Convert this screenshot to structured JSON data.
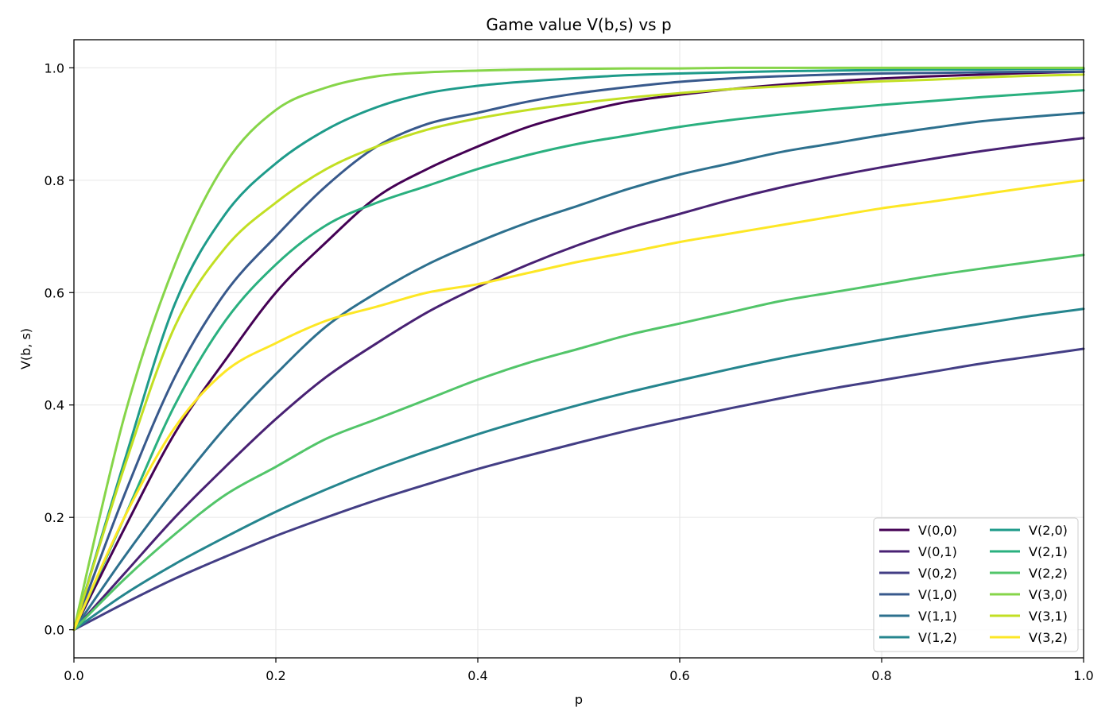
{
  "chart_data": {
    "type": "line",
    "title": "Game value V(b,s) vs p",
    "xlabel": "p",
    "ylabel": "V(b, s)",
    "xlim": [
      0.0,
      1.0
    ],
    "ylim": [
      -0.05,
      1.05
    ],
    "xticks": [
      "0.0",
      "0.2",
      "0.4",
      "0.6",
      "0.8",
      "1.0"
    ],
    "yticks": [
      "0.0",
      "0.2",
      "0.4",
      "0.6",
      "0.8",
      "1.0"
    ],
    "grid": true,
    "legend_position": "lower-right",
    "x": [
      0,
      0.05,
      0.1,
      0.15,
      0.2,
      0.25,
      0.3,
      0.35,
      0.4,
      0.45,
      0.5,
      0.55,
      0.6,
      0.65,
      0.7,
      0.75,
      0.8,
      0.85,
      0.9,
      0.95,
      1.0
    ],
    "series": [
      {
        "name": "V(0,0)",
        "color": "#440154",
        "values": [
          0,
          0.18,
          0.35,
          0.48,
          0.6,
          0.69,
          0.77,
          0.82,
          0.86,
          0.895,
          0.92,
          0.94,
          0.952,
          0.962,
          0.97,
          0.976,
          0.981,
          0.985,
          0.988,
          0.991,
          0.993
        ]
      },
      {
        "name": "V(0,1)",
        "color": "#482173",
        "values": [
          0,
          0.1,
          0.2,
          0.29,
          0.375,
          0.45,
          0.51,
          0.565,
          0.61,
          0.65,
          0.685,
          0.715,
          0.74,
          0.765,
          0.787,
          0.806,
          0.823,
          0.838,
          0.852,
          0.864,
          0.875
        ]
      },
      {
        "name": "V(0,2)",
        "color": "#433e85",
        "values": [
          0,
          0.047,
          0.091,
          0.13,
          0.167,
          0.2,
          0.231,
          0.259,
          0.286,
          0.31,
          0.333,
          0.355,
          0.375,
          0.394,
          0.412,
          0.429,
          0.444,
          0.459,
          0.474,
          0.487,
          0.5
        ]
      },
      {
        "name": "V(1,0)",
        "color": "#38598c",
        "values": [
          0,
          0.24,
          0.45,
          0.6,
          0.7,
          0.79,
          0.86,
          0.9,
          0.92,
          0.94,
          0.955,
          0.966,
          0.975,
          0.981,
          0.985,
          0.988,
          0.99,
          0.991,
          0.992,
          0.993,
          0.993
        ]
      },
      {
        "name": "V(1,1)",
        "color": "#2d708e",
        "values": [
          0,
          0.13,
          0.25,
          0.36,
          0.455,
          0.54,
          0.6,
          0.65,
          0.69,
          0.725,
          0.755,
          0.785,
          0.81,
          0.83,
          0.85,
          0.865,
          0.88,
          0.893,
          0.905,
          0.913,
          0.92
        ]
      },
      {
        "name": "V(1,2)",
        "color": "#25858e",
        "values": [
          0,
          0.063,
          0.117,
          0.165,
          0.21,
          0.25,
          0.286,
          0.318,
          0.348,
          0.375,
          0.4,
          0.423,
          0.444,
          0.464,
          0.483,
          0.5,
          0.516,
          0.531,
          0.545,
          0.559,
          0.571
        ]
      },
      {
        "name": "V(2,0)",
        "color": "#1e9b8a",
        "values": [
          0,
          0.3,
          0.58,
          0.74,
          0.83,
          0.89,
          0.93,
          0.955,
          0.968,
          0.976,
          0.982,
          0.987,
          0.99,
          0.992,
          0.994,
          0.995,
          0.996,
          0.997,
          0.997,
          0.998,
          0.998
        ]
      },
      {
        "name": "V(2,1)",
        "color": "#2ab07f",
        "values": [
          0,
          0.2,
          0.4,
          0.55,
          0.65,
          0.72,
          0.76,
          0.79,
          0.82,
          0.845,
          0.865,
          0.88,
          0.895,
          0.907,
          0.917,
          0.926,
          0.934,
          0.941,
          0.948,
          0.954,
          0.96
        ]
      },
      {
        "name": "V(2,2)",
        "color": "#52c569",
        "values": [
          0,
          0.09,
          0.17,
          0.24,
          0.29,
          0.34,
          0.375,
          0.41,
          0.445,
          0.475,
          0.5,
          0.525,
          0.545,
          0.565,
          0.585,
          0.6,
          0.615,
          0.63,
          0.643,
          0.655,
          0.667
        ]
      },
      {
        "name": "V(3,0)",
        "color": "#86d549",
        "values": [
          0,
          0.38,
          0.65,
          0.83,
          0.925,
          0.965,
          0.985,
          0.992,
          0.995,
          0.997,
          0.998,
          0.999,
          0.999,
          1.0,
          1.0,
          1.0,
          1.0,
          1.0,
          1.0,
          1.0,
          1.0
        ]
      },
      {
        "name": "V(3,1)",
        "color": "#c2df23",
        "values": [
          0,
          0.29,
          0.54,
          0.68,
          0.76,
          0.82,
          0.86,
          0.89,
          0.91,
          0.925,
          0.937,
          0.947,
          0.955,
          0.962,
          0.967,
          0.972,
          0.976,
          0.979,
          0.983,
          0.986,
          0.988
        ]
      },
      {
        "name": "V(3,2)",
        "color": "#fde725",
        "values": [
          0,
          0.2,
          0.36,
          0.46,
          0.51,
          0.55,
          0.575,
          0.6,
          0.615,
          0.635,
          0.655,
          0.672,
          0.69,
          0.705,
          0.72,
          0.735,
          0.75,
          0.762,
          0.775,
          0.788,
          0.8
        ]
      }
    ]
  }
}
